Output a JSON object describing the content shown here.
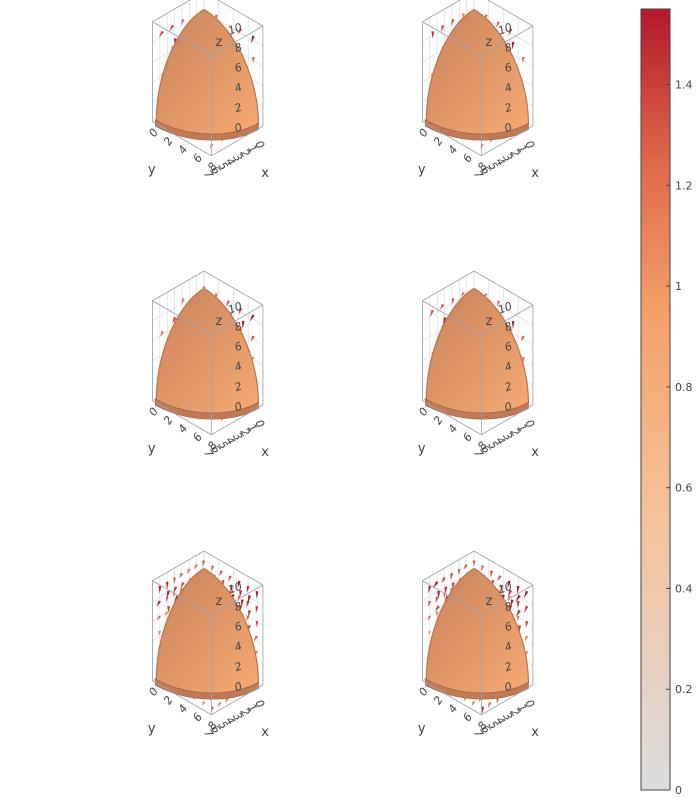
{
  "chart_data": {
    "type": "3d-cone-and-isosurface",
    "layout": "3 rows x 2 columns of identical 3D scenes",
    "scenes": [
      {
        "row": 1,
        "col": 1,
        "arrow_density": "light"
      },
      {
        "row": 1,
        "col": 2,
        "arrow_density": "light"
      },
      {
        "row": 2,
        "col": 1,
        "arrow_density": "light"
      },
      {
        "row": 2,
        "col": 2,
        "arrow_density": "light"
      },
      {
        "row": 3,
        "col": 1,
        "arrow_density": "dense"
      },
      {
        "row": 3,
        "col": 2,
        "arrow_density": "dense"
      }
    ],
    "axes": {
      "x": {
        "label": "x",
        "ticks": [
          "0",
          "1",
          "2",
          "3",
          "4",
          "5",
          "6",
          "7"
        ],
        "range": [
          0,
          7
        ]
      },
      "y": {
        "label": "y",
        "ticks": [
          "0",
          "2",
          "4",
          "6",
          "8"
        ],
        "range": [
          0,
          8
        ]
      },
      "z": {
        "label": "z",
        "ticks": [
          "0",
          "2",
          "4",
          "6",
          "8",
          "10"
        ],
        "range": [
          0,
          10
        ]
      }
    },
    "isosurface": {
      "shape": "octant of a sphere (Reuleaux-like triangular surface)",
      "color": "#f4a36a",
      "shade_color": "#c8805a"
    },
    "colorbar": {
      "ticks": [
        0,
        0.2,
        0.4,
        0.6,
        0.8,
        1,
        1.2,
        1.4
      ],
      "tick_labels": [
        "0",
        "0.2",
        "0.4",
        "0.6",
        "0.8",
        "1",
        "1.2",
        "1.4"
      ],
      "range": [
        0,
        1.55
      ],
      "colorscale": [
        [
          0,
          "#dcdcdc"
        ],
        [
          0.35,
          "#f5c29c"
        ],
        [
          0.6,
          "#f4a36a"
        ],
        [
          0.8,
          "#e06a4d"
        ],
        [
          1,
          "#b2182b"
        ]
      ]
    }
  }
}
